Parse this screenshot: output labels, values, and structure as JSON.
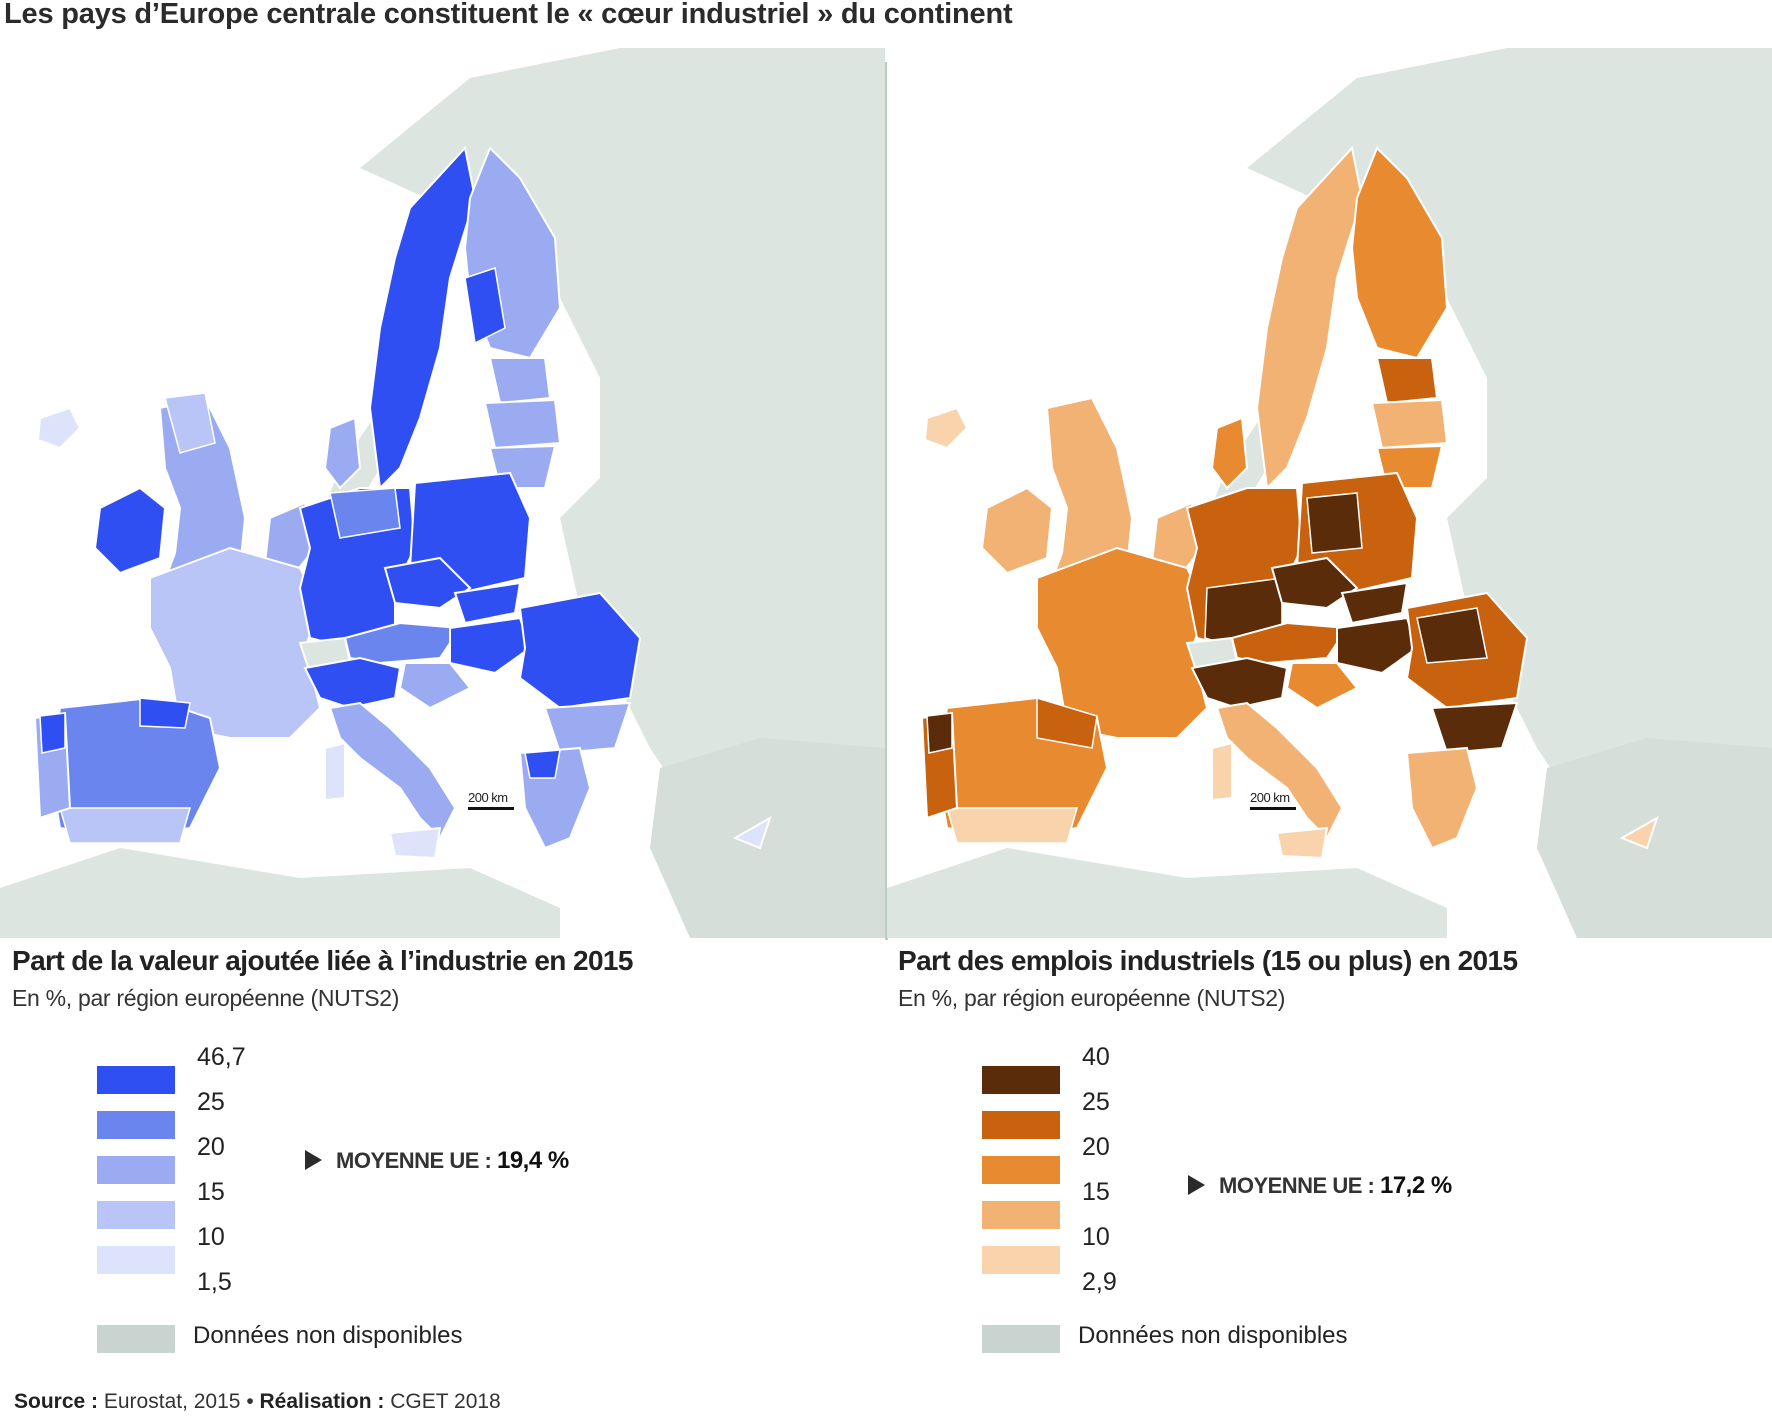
{
  "title": "Les pays d’Europe centrale constituent le « cœur industriel » du continent",
  "colors": {
    "sea": "#ffffff",
    "land_no_data": "#dde5e1",
    "divider": "#b8ccc4"
  },
  "left": {
    "title": "Part de la valeur ajoutée liée à l’industrie en 2015",
    "subtitle": "En %, par région européenne (NUTS2)",
    "scale_label": "200 km",
    "legend_ticks": [
      "46,7",
      "25",
      "20",
      "15",
      "10",
      "1,5"
    ],
    "legend_colors": [
      "#2f4ff2",
      "#6b85ee",
      "#9aabf2",
      "#b9c5f6",
      "#dde3fb"
    ],
    "average_label": "MOYENNE UE :",
    "average_value": "19,4 %",
    "na_label": "Données non disponibles",
    "na_color": "#c9d3cf"
  },
  "right": {
    "title": "Part des emplois industriels (15 ou plus) en 2015",
    "subtitle": "En %, par région européenne (NUTS2)",
    "scale_label": "200 km",
    "legend_ticks": [
      "40",
      "25",
      "20",
      "15",
      "10",
      "2,9"
    ],
    "legend_colors": [
      "#5a2c0a",
      "#c8620e",
      "#e88a30",
      "#f2b273",
      "#f8d3ac"
    ],
    "average_label": "MOYENNE UE :",
    "average_value": "17,2 %",
    "na_label": "Données non disponibles",
    "na_color": "#c9d3cf"
  },
  "source": {
    "source_label": "Source :",
    "source_text": "Eurostat, 2015",
    "separator": "•",
    "made_label": "Réalisation :",
    "made_text": "CGET 2018"
  }
}
